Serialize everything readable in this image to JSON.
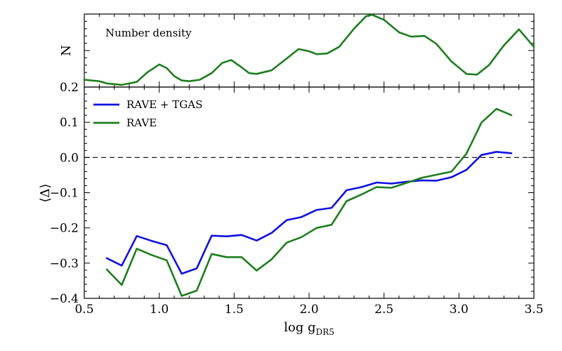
{
  "chart_data": [
    {
      "type": "line",
      "panel": "top",
      "ylabel": "N",
      "annotation": "Number density",
      "ytick_labels_shown": [
        "0.2"
      ],
      "xlim": [
        0.5,
        3.5
      ],
      "ylim": [
        0,
        1
      ],
      "series": [
        {
          "name": "Number density",
          "color": "#1e7d1e",
          "x": [
            0.5,
            0.6,
            0.65,
            0.75,
            0.85,
            0.92,
            1.0,
            1.05,
            1.1,
            1.15,
            1.2,
            1.27,
            1.35,
            1.42,
            1.48,
            1.55,
            1.6,
            1.65,
            1.75,
            1.85,
            1.93,
            2.0,
            2.05,
            2.12,
            2.2,
            2.3,
            2.38,
            2.42,
            2.5,
            2.6,
            2.68,
            2.77,
            2.85,
            2.95,
            3.05,
            3.12,
            3.2,
            3.3,
            3.4,
            3.5
          ],
          "y": [
            0.1,
            0.08,
            0.05,
            0.03,
            0.07,
            0.2,
            0.31,
            0.26,
            0.15,
            0.09,
            0.08,
            0.1,
            0.19,
            0.33,
            0.37,
            0.27,
            0.19,
            0.18,
            0.23,
            0.39,
            0.52,
            0.49,
            0.45,
            0.46,
            0.55,
            0.8,
            0.97,
            0.99,
            0.92,
            0.75,
            0.69,
            0.7,
            0.59,
            0.35,
            0.18,
            0.17,
            0.3,
            0.57,
            0.79,
            0.55
          ]
        }
      ]
    },
    {
      "type": "line",
      "panel": "bottom",
      "xlabel": "log g",
      "xlabel_sub": "DR5",
      "ylabel": "⟨Δ⟩",
      "xlim": [
        0.5,
        3.5
      ],
      "ylim": [
        -0.4,
        0.2
      ],
      "xticks": [
        0.5,
        1.0,
        1.5,
        2.0,
        2.5,
        3.0,
        3.5
      ],
      "xtick_labels": [
        "0.5",
        "1.0",
        "1.5",
        "2.0",
        "2.5",
        "3.0",
        "3.5"
      ],
      "yticks": [
        -0.4,
        -0.3,
        -0.2,
        -0.1,
        0.0,
        0.1
      ],
      "ytick_labels": [
        "−0.4",
        "−0.3",
        "−0.2",
        "−0.1",
        "0.0",
        "0.1"
      ],
      "reference_line": {
        "y": 0.0,
        "style": "dashed"
      },
      "legend_position": "top-left",
      "x": [
        0.65,
        0.75,
        0.85,
        0.95,
        1.05,
        1.15,
        1.25,
        1.35,
        1.45,
        1.55,
        1.65,
        1.75,
        1.85,
        1.95,
        2.05,
        2.15,
        2.25,
        2.35,
        2.45,
        2.55,
        2.65,
        2.75,
        2.85,
        2.95,
        3.05,
        3.15,
        3.25,
        3.35
      ],
      "series": [
        {
          "name": "RAVE + TGAS",
          "color": "#1010e0",
          "values": [
            -0.286,
            -0.307,
            -0.223,
            -0.237,
            -0.249,
            -0.33,
            -0.315,
            -0.222,
            -0.224,
            -0.22,
            -0.236,
            -0.214,
            -0.178,
            -0.169,
            -0.149,
            -0.143,
            -0.093,
            -0.084,
            -0.071,
            -0.074,
            -0.069,
            -0.065,
            -0.066,
            -0.056,
            -0.035,
            0.007,
            0.016,
            0.012
          ]
        },
        {
          "name": "RAVE",
          "color": "#1e7d1e",
          "values": [
            -0.318,
            -0.362,
            -0.259,
            -0.277,
            -0.292,
            -0.393,
            -0.378,
            -0.274,
            -0.283,
            -0.283,
            -0.321,
            -0.289,
            -0.242,
            -0.226,
            -0.2,
            -0.191,
            -0.124,
            -0.105,
            -0.084,
            -0.086,
            -0.072,
            -0.058,
            -0.049,
            -0.04,
            0.011,
            0.099,
            0.138,
            0.12
          ]
        }
      ]
    }
  ]
}
